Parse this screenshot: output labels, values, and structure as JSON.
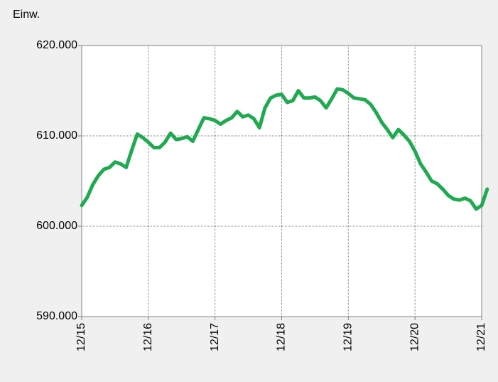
{
  "chart_data": {
    "type": "line",
    "y_label": "Einw.",
    "x": [
      "2015-12",
      "2016-01",
      "2016-02",
      "2016-03",
      "2016-04",
      "2016-05",
      "2016-06",
      "2016-07",
      "2016-08",
      "2016-09",
      "2016-10",
      "2016-11",
      "2016-12",
      "2017-01",
      "2017-02",
      "2017-03",
      "2017-04",
      "2017-05",
      "2017-06",
      "2017-07",
      "2017-08",
      "2017-09",
      "2017-10",
      "2017-11",
      "2017-12",
      "2018-01",
      "2018-02",
      "2018-03",
      "2018-04",
      "2018-05",
      "2018-06",
      "2018-07",
      "2018-08",
      "2018-09",
      "2018-10",
      "2018-11",
      "2018-12",
      "2019-01",
      "2019-02",
      "2019-03",
      "2019-04",
      "2019-05",
      "2019-06",
      "2019-07",
      "2019-08",
      "2019-09",
      "2019-10",
      "2019-11",
      "2019-12",
      "2020-01",
      "2020-02",
      "2020-03",
      "2020-04",
      "2020-05",
      "2020-06",
      "2020-07",
      "2020-08",
      "2020-09",
      "2020-10",
      "2020-11",
      "2020-12",
      "2021-01",
      "2021-02",
      "2021-03",
      "2021-04",
      "2021-05",
      "2021-06",
      "2021-07",
      "2021-08",
      "2021-09",
      "2021-10",
      "2021-11",
      "2021-12",
      "2022-01"
    ],
    "series": [
      {
        "color": "#1faa4f",
        "values": [
          602300,
          603200,
          604600,
          605600,
          606300,
          606500,
          607100,
          606900,
          606500,
          608400,
          610200,
          609800,
          609300,
          608700,
          608700,
          609300,
          610300,
          609600,
          609700,
          609900,
          609400,
          610700,
          612000,
          611900,
          611700,
          611300,
          611700,
          612000,
          612700,
          612100,
          612300,
          611900,
          610900,
          613100,
          614200,
          614500,
          614600,
          613700,
          613900,
          615000,
          614200,
          614200,
          614300,
          613900,
          613100,
          614100,
          615200,
          615100,
          614700,
          614200,
          614100,
          614000,
          613500,
          612600,
          611500,
          610700,
          609800,
          610700,
          610100,
          609400,
          608300,
          606900,
          606000,
          605000,
          604700,
          604100,
          603400,
          603000,
          602900,
          603100,
          602800,
          601900,
          602300,
          604100
        ]
      }
    ],
    "xlim": [
      "2015-12",
      "2021-12"
    ],
    "xticks": [
      {
        "value": "2015-12",
        "label": "12/15"
      },
      {
        "value": "2016-12",
        "label": "12/16"
      },
      {
        "value": "2017-12",
        "label": "12/17"
      },
      {
        "value": "2018-12",
        "label": "12/18"
      },
      {
        "value": "2019-12",
        "label": "12/19"
      },
      {
        "value": "2020-12",
        "label": "12/20"
      },
      {
        "value": "2021-12",
        "label": "12/21"
      }
    ],
    "ylim": [
      590000,
      620000
    ],
    "yticks": [
      {
        "value": 590000,
        "label": "590.000"
      },
      {
        "value": 600000,
        "label": "600.000"
      },
      {
        "value": 610000,
        "label": "610.000"
      },
      {
        "value": 620000,
        "label": "620.000"
      }
    ],
    "grid": true
  }
}
